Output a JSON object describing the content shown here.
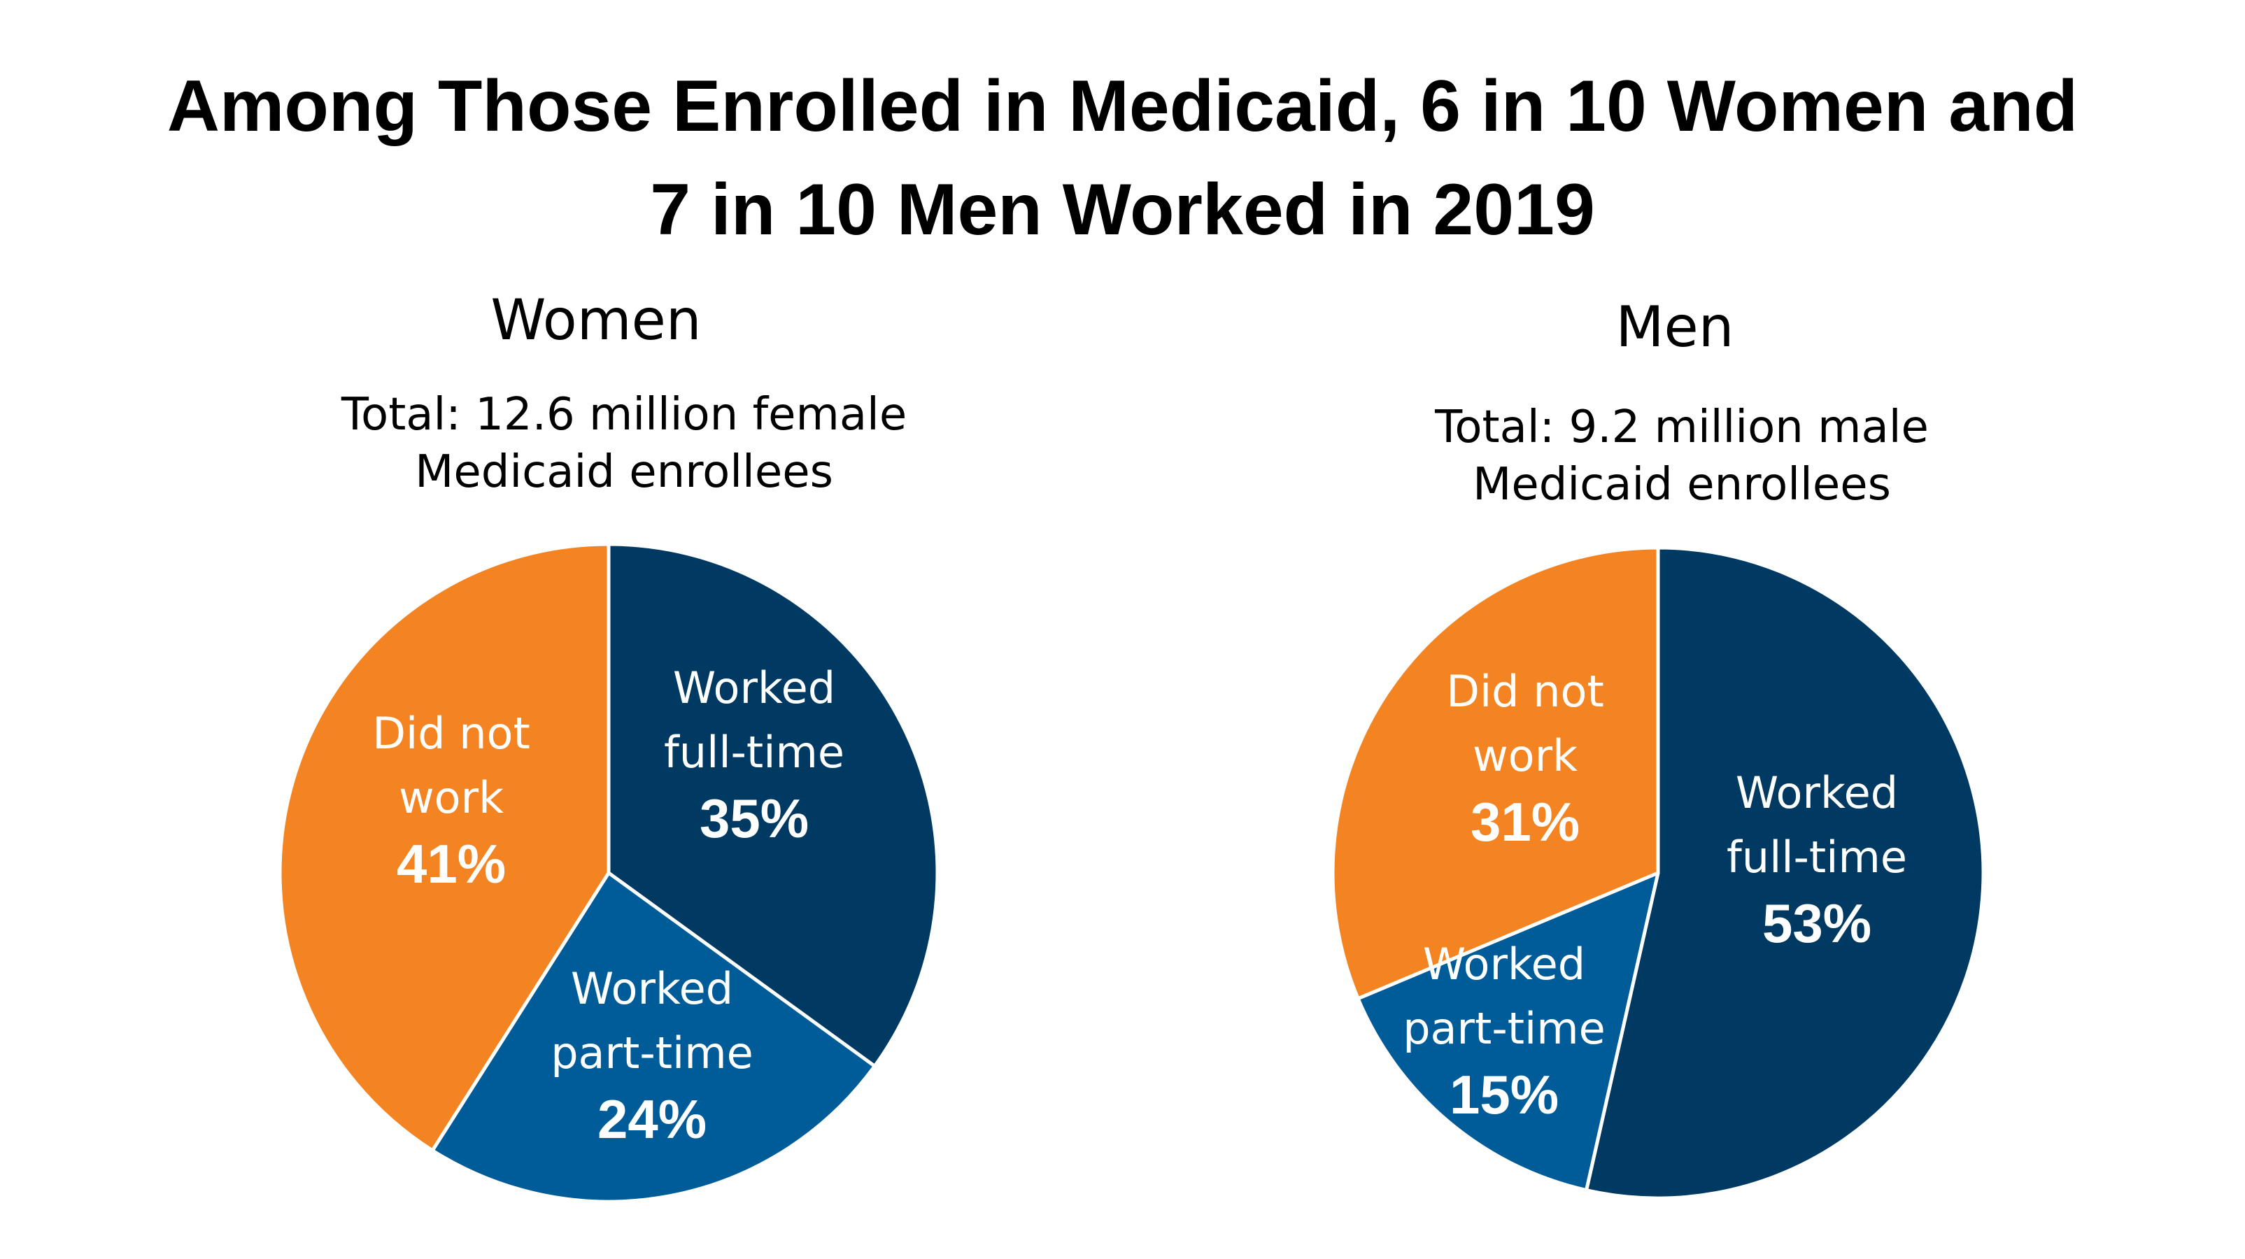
{
  "title_lines": [
    "Among Those Enrolled in Medicaid, 6 in 10 Women and",
    "7 in 10 Men Worked in 2019"
  ],
  "colors": {
    "full_time": "#003A63",
    "part_time": "#005B99",
    "did_not_work": "#F48422"
  },
  "chart_data": [
    {
      "type": "pie",
      "title": "Women",
      "subtitle_lines": [
        "Total: 12.6 million female",
        "Medicaid enrollees"
      ],
      "slices": [
        {
          "key": "full_time",
          "label_lines": [
            "Worked",
            "full-time"
          ],
          "value": 35,
          "value_label": "35%"
        },
        {
          "key": "part_time",
          "label_lines": [
            "Worked",
            "part-time"
          ],
          "value": 24,
          "value_label": "24%"
        },
        {
          "key": "did_not_work",
          "label_lines": [
            "Did not",
            "work"
          ],
          "value": 41,
          "value_label": "41%"
        }
      ]
    },
    {
      "type": "pie",
      "title": "Men",
      "subtitle_lines": [
        "Total: 9.2 million male",
        "Medicaid enrollees"
      ],
      "slices": [
        {
          "key": "full_time",
          "label_lines": [
            "Worked",
            "full-time"
          ],
          "value": 53,
          "value_label": "53%"
        },
        {
          "key": "part_time",
          "label_lines": [
            "Worked",
            "part-time"
          ],
          "value": 15,
          "value_label": "15%"
        },
        {
          "key": "did_not_work",
          "label_lines": [
            "Did not",
            "work"
          ],
          "value": 31,
          "value_label": "31%"
        }
      ]
    }
  ]
}
